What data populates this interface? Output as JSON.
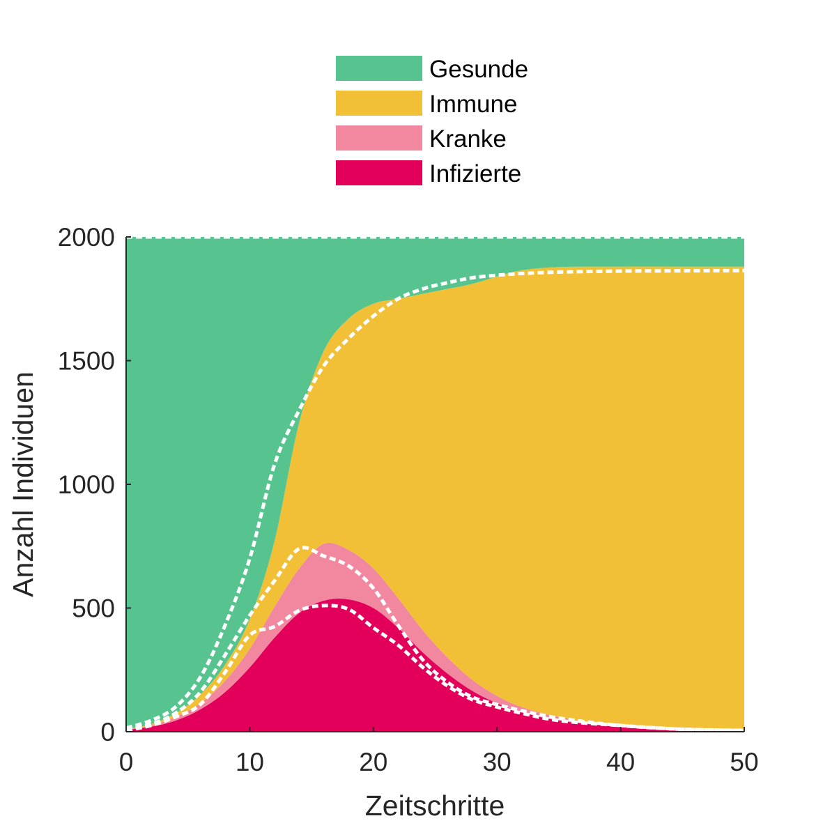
{
  "chart_data": {
    "type": "area",
    "xlabel": "Zeitschritte",
    "ylabel": "Anzahl Individuen",
    "xlim": [
      0,
      50
    ],
    "ylim": [
      0,
      2000
    ],
    "xticks": [
      "0",
      "10",
      "20",
      "30",
      "40",
      "50"
    ],
    "yticks": [
      "0",
      "500",
      "1000",
      "1500",
      "2000"
    ],
    "grid": false,
    "legend_position": "top-center",
    "x": [
      0,
      2,
      4,
      6,
      8,
      10,
      12,
      14,
      16,
      18,
      20,
      22,
      24,
      26,
      28,
      30,
      32,
      35,
      40,
      45,
      50
    ],
    "series": [
      {
        "name": "Infizierte",
        "color": "#e2005a",
        "values": [
          8,
          20,
          45,
          90,
          160,
          260,
          380,
          480,
          530,
          535,
          500,
          420,
          320,
          235,
          165,
          115,
          80,
          45,
          20,
          8,
          3
        ]
      },
      {
        "name": "Kranke",
        "color": "#f288a0",
        "values": [
          2,
          5,
          15,
          25,
          45,
          75,
          125,
          180,
          230,
          200,
          160,
          120,
          90,
          65,
          45,
          30,
          20,
          15,
          5,
          2,
          1
        ]
      },
      {
        "name": "Immune",
        "color": "#f1c036",
        "values": [
          0,
          5,
          15,
          35,
          65,
          120,
          265,
          590,
          780,
          935,
          1070,
          1210,
          1360,
          1490,
          1600,
          1695,
          1765,
          1818,
          1855,
          1870,
          1876
        ]
      },
      {
        "name": "Gesunde",
        "color": "#57c48f",
        "values": [
          1990,
          1970,
          1925,
          1850,
          1730,
          1545,
          1230,
          750,
          460,
          330,
          270,
          250,
          230,
          210,
          190,
          160,
          135,
          122,
          120,
          120,
          120
        ]
      }
    ],
    "dashed_overlay": {
      "color": "#ffffff",
      "lines": [
        {
          "x": [
            0,
            2,
            4,
            6,
            8,
            10,
            12,
            14,
            16,
            18,
            20,
            22,
            24,
            26,
            28,
            30,
            32,
            35,
            40,
            45,
            50
          ],
          "values": [
            5,
            25,
            60,
            110,
            240,
            390,
            425,
            490,
            510,
            495,
            420,
            350,
            260,
            185,
            130,
            100,
            75,
            45,
            25,
            10,
            5
          ]
        },
        {
          "x": [
            0,
            2,
            4,
            6,
            8,
            10,
            12,
            14,
            16,
            18,
            20,
            22,
            24,
            26,
            28,
            30,
            32,
            35,
            40,
            45,
            50
          ],
          "values": [
            5,
            30,
            75,
            160,
            310,
            470,
            610,
            740,
            710,
            670,
            580,
            430,
            290,
            200,
            140,
            110,
            85,
            55,
            25,
            10,
            5
          ]
        },
        {
          "x": [
            0,
            2,
            4,
            6,
            8,
            10,
            12,
            14,
            16,
            18,
            20,
            22,
            24,
            26,
            28,
            30,
            32,
            35,
            40,
            45,
            50
          ],
          "values": [
            15,
            45,
            100,
            220,
            430,
            700,
            1080,
            1300,
            1480,
            1590,
            1680,
            1750,
            1790,
            1815,
            1835,
            1845,
            1852,
            1858,
            1862,
            1863,
            1864
          ]
        },
        {
          "x": [
            0,
            50
          ],
          "values": [
            2000,
            2000
          ]
        }
      ]
    },
    "legend": [
      "Gesunde",
      "Immune",
      "Kranke",
      "Infizierte"
    ]
  }
}
